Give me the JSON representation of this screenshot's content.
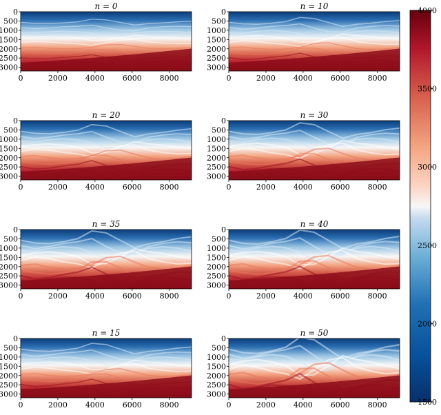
{
  "chart_data": {
    "type": "heatmap",
    "description_colormap": "RdBu_r",
    "colors": {
      "low": "#08306b",
      "mid": "#f7f7f7",
      "high": "#67000d"
    },
    "x_ticks": [
      "0",
      "2000",
      "4000",
      "6000",
      "8000"
    ],
    "y_ticks": [
      "0",
      "500",
      "1000",
      "1500",
      "2000",
      "2500",
      "3000"
    ],
    "xlim": [
      0,
      9200
    ],
    "ylim": [
      3200,
      0
    ],
    "colorbar": {
      "range": [
        1500,
        4000
      ],
      "ticks": [
        "1500",
        "2000",
        "2500",
        "3000",
        "3500",
        "4000"
      ]
    },
    "panels": [
      {
        "title": "n = 0",
        "n": 0
      },
      {
        "title": "n = 10",
        "n": 10
      },
      {
        "title": "n = 20",
        "n": 20
      },
      {
        "title": "n = 30",
        "n": 30
      },
      {
        "title": "n = 35",
        "n": 35
      },
      {
        "title": "n = 40",
        "n": 40
      },
      {
        "title": "n = 15",
        "n": 15
      },
      {
        "title": "n = 50",
        "n": 50
      }
    ]
  }
}
